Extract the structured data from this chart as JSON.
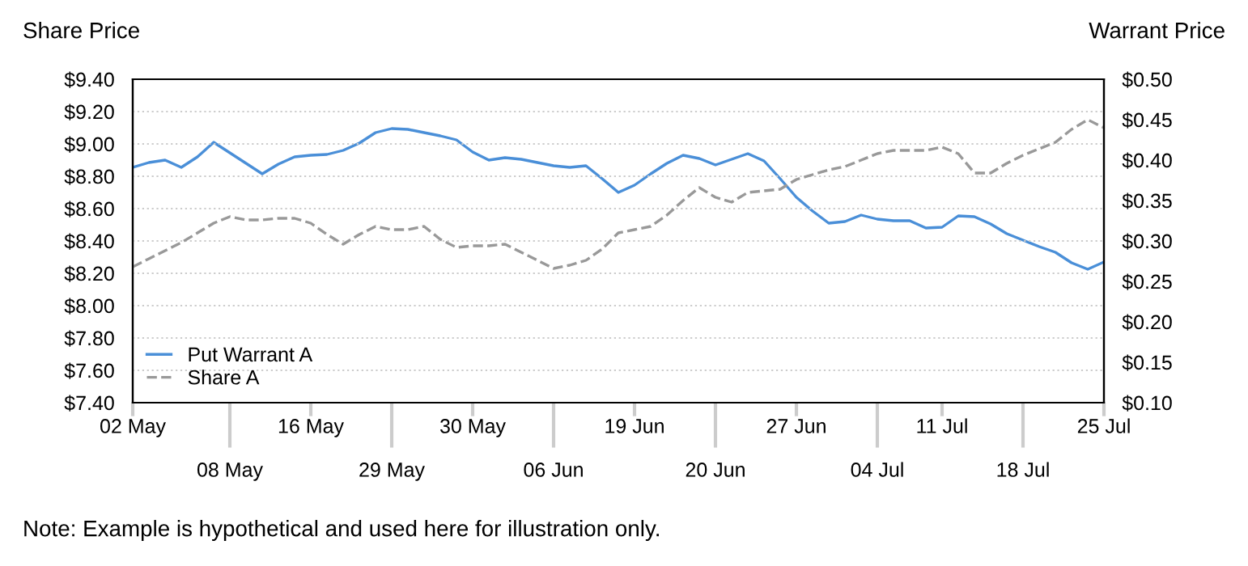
{
  "chart_data": {
    "type": "line",
    "ylabel": "Share Price",
    "y2label": "Warrant Price",
    "annotations": [
      "Note: Example is hypothetical and used here for illustration only."
    ],
    "categories": [
      "02 May",
      null,
      null,
      null,
      null,
      null,
      "08 May",
      null,
      null,
      null,
      null,
      "16 May",
      null,
      null,
      null,
      null,
      "29 May",
      null,
      null,
      null,
      null,
      "30 May",
      null,
      null,
      null,
      null,
      "06 Jun",
      null,
      null,
      null,
      null,
      "19 Jun",
      null,
      null,
      null,
      null,
      "20 Jun",
      null,
      null,
      null,
      null,
      "27 Jun",
      null,
      null,
      null,
      null,
      "04 Jul",
      null,
      null,
      null,
      "11 Jul",
      null,
      null,
      null,
      null,
      "18 Jul",
      null,
      null,
      null,
      null,
      "25 Jul"
    ],
    "ylim": [
      7.4,
      9.4
    ],
    "yticks": [
      {
        "value": 7.4,
        "label": "$7.40"
      },
      {
        "value": 7.6,
        "label": "$7.60"
      },
      {
        "value": 7.8,
        "label": "$7.80"
      },
      {
        "value": 8.0,
        "label": "$8.00"
      },
      {
        "value": 8.2,
        "label": "$8.20"
      },
      {
        "value": 8.4,
        "label": "$8.40"
      },
      {
        "value": 8.6,
        "label": "$8.60"
      },
      {
        "value": 8.8,
        "label": "$8.80"
      },
      {
        "value": 9.0,
        "label": "$9.00"
      },
      {
        "value": 9.2,
        "label": "$9.20"
      },
      {
        "value": 9.4,
        "label": "$9.40"
      }
    ],
    "y2lim": [
      0.1,
      0.5
    ],
    "y2ticks": [
      {
        "value": 0.1,
        "label": "$0.10"
      },
      {
        "value": 0.15,
        "label": "$0.15"
      },
      {
        "value": 0.2,
        "label": "$0.20"
      },
      {
        "value": 0.25,
        "label": "$0.25"
      },
      {
        "value": 0.3,
        "label": "$0.30"
      },
      {
        "value": 0.35,
        "label": "$0.35"
      },
      {
        "value": 0.4,
        "label": "$0.40"
      },
      {
        "value": 0.45,
        "label": "$0.45"
      },
      {
        "value": 0.5,
        "label": "$0.50"
      }
    ],
    "grid": "y",
    "legend": "bottom left",
    "series": [
      {
        "name": "Put Warrant A",
        "color": "#4a8fd8",
        "axis": "y2",
        "line_style": "solid",
        "values": [
          0.391,
          0.397,
          0.4,
          0.391,
          0.404,
          0.422,
          0.409,
          0.396,
          0.383,
          0.395,
          0.404,
          0.406,
          0.407,
          0.412,
          0.421,
          0.434,
          0.439,
          0.438,
          0.434,
          0.43,
          0.425,
          0.41,
          0.4,
          0.403,
          0.401,
          0.397,
          0.393,
          0.391,
          0.393,
          0.377,
          0.36,
          0.369,
          0.383,
          0.396,
          0.406,
          0.402,
          0.394,
          0.401,
          0.408,
          0.399,
          0.377,
          0.354,
          0.337,
          0.322,
          0.324,
          0.332,
          0.327,
          0.325,
          0.325,
          0.316,
          0.317,
          0.331,
          0.33,
          0.321,
          0.309,
          0.301,
          0.293,
          0.286,
          0.273,
          0.265,
          0.274
        ]
      },
      {
        "name": "Share A",
        "color": "#999999",
        "line_style": "dashed",
        "values": [
          8.24,
          8.29,
          8.34,
          8.39,
          8.45,
          8.51,
          8.55,
          8.53,
          8.53,
          8.54,
          8.54,
          8.51,
          8.44,
          8.38,
          8.44,
          8.49,
          8.47,
          8.47,
          8.49,
          8.41,
          8.36,
          8.37,
          8.37,
          8.38,
          8.33,
          8.28,
          8.23,
          8.25,
          8.28,
          8.35,
          8.45,
          8.47,
          8.49,
          8.56,
          8.65,
          8.73,
          8.67,
          8.64,
          8.7,
          8.71,
          8.72,
          8.78,
          8.81,
          8.84,
          8.86,
          8.9,
          8.94,
          8.96,
          8.96,
          8.96,
          8.98,
          8.94,
          8.82,
          8.82,
          8.88,
          8.93,
          8.97,
          9.01,
          9.09,
          9.15,
          9.1
        ]
      }
    ]
  }
}
